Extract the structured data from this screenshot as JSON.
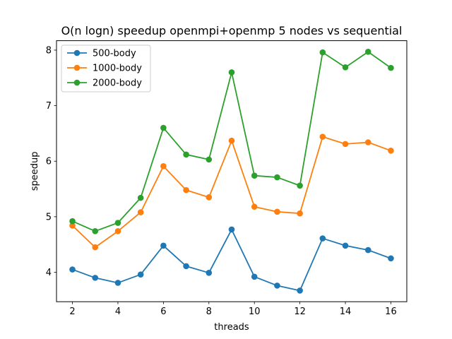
{
  "chart_data": {
    "type": "line",
    "title": "O(n logn) speedup openmpi+openmp 5 nodes vs sequential",
    "xlabel": "threads",
    "ylabel": "speedup",
    "x": [
      2,
      3,
      4,
      5,
      6,
      7,
      8,
      9,
      10,
      11,
      12,
      13,
      14,
      15,
      16
    ],
    "xlim": [
      1.3,
      16.7
    ],
    "ylim": [
      3.47,
      8.17
    ],
    "xticks": [
      2,
      4,
      6,
      8,
      10,
      12,
      14,
      16
    ],
    "yticks": [
      4,
      5,
      6,
      7,
      8
    ],
    "grid": false,
    "legend_position": "top-left",
    "series": [
      {
        "name": "500-body",
        "color": "#1f77b4",
        "values": [
          4.05,
          3.9,
          3.81,
          3.96,
          4.48,
          4.11,
          3.99,
          4.77,
          3.92,
          3.76,
          3.67,
          4.61,
          4.48,
          4.4,
          4.25
        ]
      },
      {
        "name": "1000-body",
        "color": "#ff7f0e",
        "values": [
          4.84,
          4.45,
          4.74,
          5.08,
          5.91,
          5.48,
          5.35,
          6.37,
          5.18,
          5.09,
          5.06,
          6.44,
          6.31,
          6.34,
          6.19
        ]
      },
      {
        "name": "2000-body",
        "color": "#2ca02c",
        "values": [
          4.92,
          4.74,
          4.89,
          5.34,
          6.6,
          6.12,
          6.03,
          7.6,
          5.74,
          5.71,
          5.56,
          7.96,
          7.69,
          7.97,
          7.68
        ]
      }
    ]
  }
}
